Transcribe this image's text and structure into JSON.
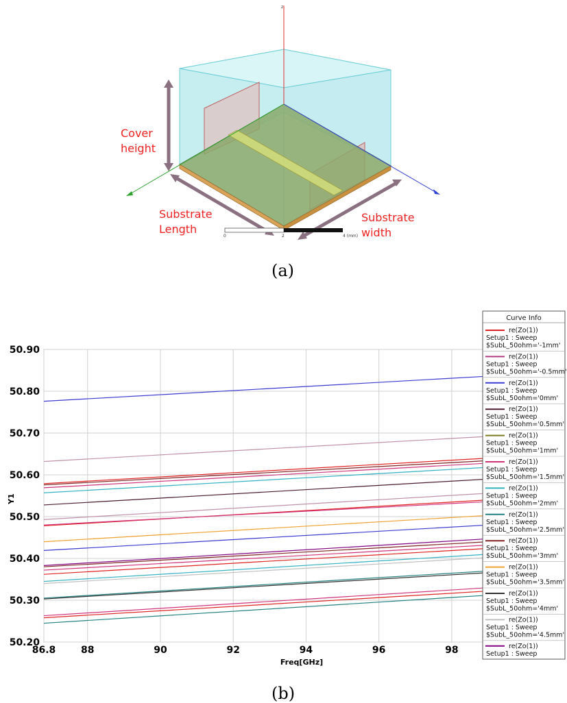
{
  "figure_a": {
    "labels": {
      "cover_height": [
        "Cover",
        "height"
      ],
      "substrate_length": [
        "Substrate",
        "Length"
      ],
      "substrate_width": [
        "Substrate",
        "width"
      ]
    },
    "scale_bar": {
      "ticks": [
        "0",
        "2",
        "4 (mm)"
      ]
    },
    "caption": "(a)"
  },
  "figure_b": {
    "caption": "(b)",
    "legend_title": "Curve Info",
    "legend_entries": [
      {
        "line1": "re(Zo(1))",
        "line2": "Setup1 : Sweep",
        "line3": "$SubL_50ohm='-1mm'",
        "color": "#e02020"
      },
      {
        "line1": "re(Zo(1))",
        "line2": "Setup1 : Sweep",
        "line3": "$SubL_50ohm='-0.5mm'",
        "color": "#b03a80"
      },
      {
        "line1": "re(Zo(1))",
        "line2": "Setup1 : Sweep",
        "line3": "$SubL_50ohm='0mm'",
        "color": "#3a3ad0"
      },
      {
        "line1": "re(Zo(1))",
        "line2": "Setup1 : Sweep",
        "line3": "$SubL_50ohm='0.5mm'",
        "color": "#4a1a30"
      },
      {
        "line1": "re(Zo(1))",
        "line2": "Setup1 : Sweep",
        "line3": "$SubL_50ohm='1mm'",
        "color": "#7a7a20"
      },
      {
        "line1": "re(Zo(1))",
        "line2": "Setup1 : Sweep",
        "line3": "$SubL_50ohm='1.5mm'",
        "color": "#d0307a"
      },
      {
        "line1": "re(Zo(1))",
        "line2": "Setup1 : Sweep",
        "line3": "$SubL_50ohm='2mm'",
        "color": "#30b0c0"
      },
      {
        "line1": "re(Zo(1))",
        "line2": "Setup1 : Sweep",
        "line3": "$SubL_50ohm='2.5mm'",
        "color": "#208080"
      },
      {
        "line1": "re(Zo(1))",
        "line2": "Setup1 : Sweep",
        "line3": "$SubL_50ohm='3mm'",
        "color": "#802020"
      },
      {
        "line1": "re(Zo(1))",
        "line2": "Setup1 : Sweep",
        "line3": "$SubL_50ohm='3.5mm'",
        "color": "#f0a030"
      },
      {
        "line1": "re(Zo(1))",
        "line2": "Setup1 : Sweep",
        "line3": "$SubL_50ohm='4mm'",
        "color": "#303030"
      },
      {
        "line1": "re(Zo(1))",
        "line2": "Setup1 : Sweep",
        "line3": "$SubL_50ohm='4.5mm'",
        "color": "#c0c0c0"
      },
      {
        "line1": "re(Zo(1))",
        "line2": "Setup1 : Sweep",
        "line3": "",
        "color": "#800080"
      }
    ]
  },
  "chart_data": {
    "type": "line",
    "xlabel": "Freq[GHz]",
    "ylabel": "Y1",
    "xlim": [
      86.8,
      99
    ],
    "ylim": [
      50.2,
      50.9
    ],
    "x_ticks": [
      "86.8",
      "88",
      "90",
      "92",
      "94",
      "96",
      "98"
    ],
    "x_tick_values": [
      86.8,
      88,
      90,
      92,
      94,
      96,
      98
    ],
    "y_ticks": [
      "50.90",
      "50.80",
      "50.70",
      "50.60",
      "50.50",
      "50.40",
      "50.30",
      "50.20"
    ],
    "y_tick_values": [
      50.9,
      50.8,
      50.7,
      50.6,
      50.5,
      50.4,
      50.3,
      50.2
    ],
    "grid": true,
    "legend_position": "right",
    "x": [
      86.8,
      99
    ],
    "series": [
      {
        "color": "#3a3ad0",
        "values": [
          50.776,
          50.836
        ]
      },
      {
        "color": "#c090a8",
        "values": [
          50.632,
          50.692
        ]
      },
      {
        "color": "#e02020",
        "values": [
          50.579,
          50.64
        ]
      },
      {
        "color": "#802020",
        "values": [
          50.576,
          50.634
        ]
      },
      {
        "color": "#d0307a",
        "values": [
          50.569,
          50.628
        ]
      },
      {
        "color": "#30b0c0",
        "values": [
          50.557,
          50.618
        ]
      },
      {
        "color": "#4a1a30",
        "values": [
          50.528,
          50.59
        ]
      },
      {
        "color": "#c090a8",
        "values": [
          50.493,
          50.556
        ]
      },
      {
        "color": "#e02020",
        "values": [
          50.478,
          50.54
        ]
      },
      {
        "color": "#d0307a",
        "values": [
          50.48,
          50.536
        ]
      },
      {
        "color": "#f0a030",
        "values": [
          50.44,
          50.503
        ]
      },
      {
        "color": "#3a3ad0",
        "values": [
          50.419,
          50.48
        ]
      },
      {
        "color": "#800080",
        "values": [
          50.383,
          50.447
        ]
      },
      {
        "color": "#802020",
        "values": [
          50.38,
          50.44
        ]
      },
      {
        "color": "#d0307a",
        "values": [
          50.372,
          50.432
        ]
      },
      {
        "color": "#e02020",
        "values": [
          50.362,
          50.424
        ]
      },
      {
        "color": "#30b0c0",
        "values": [
          50.345,
          50.41
        ]
      },
      {
        "color": "#c0c0c0",
        "values": [
          50.34,
          50.402
        ]
      },
      {
        "color": "#208080",
        "values": [
          50.305,
          50.37
        ]
      },
      {
        "color": "#303030",
        "values": [
          50.303,
          50.366
        ]
      },
      {
        "color": "#d0307a",
        "values": [
          50.263,
          50.33
        ]
      },
      {
        "color": "#e02020",
        "values": [
          50.258,
          50.322
        ]
      },
      {
        "color": "#208080",
        "values": [
          50.245,
          50.312
        ]
      }
    ]
  }
}
